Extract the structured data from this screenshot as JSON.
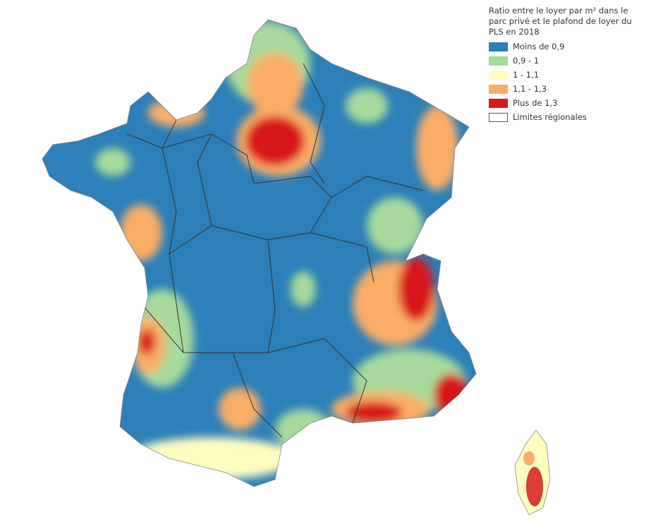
{
  "legend": {
    "title": "Ratio entre le loyer par m² dans le parc privé et le plafond de loyer du PLS en 2018",
    "items": [
      {
        "label": "Moins de 0,9",
        "color": "#2c7fb8"
      },
      {
        "label": "0,9 - 1",
        "color": "#a6d99b"
      },
      {
        "label": "1 - 1,1",
        "color": "#fdfdc0"
      },
      {
        "label": "1,1 - 1,3",
        "color": "#f9ad66"
      },
      {
        "label": "Plus de 1,3",
        "color": "#d7191c"
      },
      {
        "label": "Limites régionales",
        "color": "#ffffff"
      }
    ]
  }
}
